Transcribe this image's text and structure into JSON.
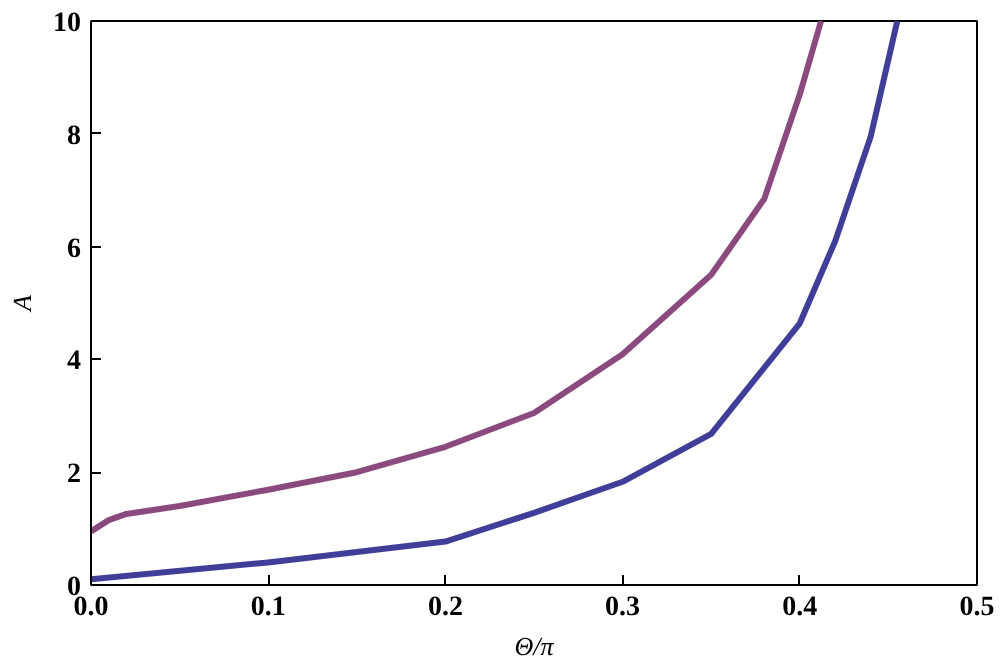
{
  "chart_data": {
    "type": "line",
    "xlabel": "Θ/π",
    "ylabel": "A",
    "xlim": [
      0,
      0.5
    ],
    "ylim": [
      0,
      10
    ],
    "xticks": [
      {
        "value": 0,
        "label": "0.0"
      },
      0.1,
      0.2,
      0.3,
      0.4,
      0.5
    ],
    "yticks": [
      0,
      2,
      4,
      6,
      8,
      10
    ],
    "grid": false,
    "series": [
      {
        "color": "#8b4a7e",
        "x": [
          0,
          0.01,
          0.02,
          0.05,
          0.1,
          0.15,
          0.2,
          0.25,
          0.3,
          0.35,
          0.38,
          0.4,
          0.412
        ],
        "values": [
          0.95,
          1.15,
          1.26,
          1.4,
          1.69,
          2.0,
          2.45,
          3.05,
          4.09,
          5.5,
          6.85,
          8.7,
          10
        ]
      },
      {
        "color": "#3f3f99",
        "x": [
          0,
          0.1,
          0.2,
          0.25,
          0.3,
          0.35,
          0.4,
          0.42,
          0.44,
          0.455
        ],
        "values": [
          0.1,
          0.4,
          0.77,
          1.28,
          1.83,
          2.68,
          4.64,
          6.1,
          7.95,
          10
        ]
      }
    ]
  }
}
